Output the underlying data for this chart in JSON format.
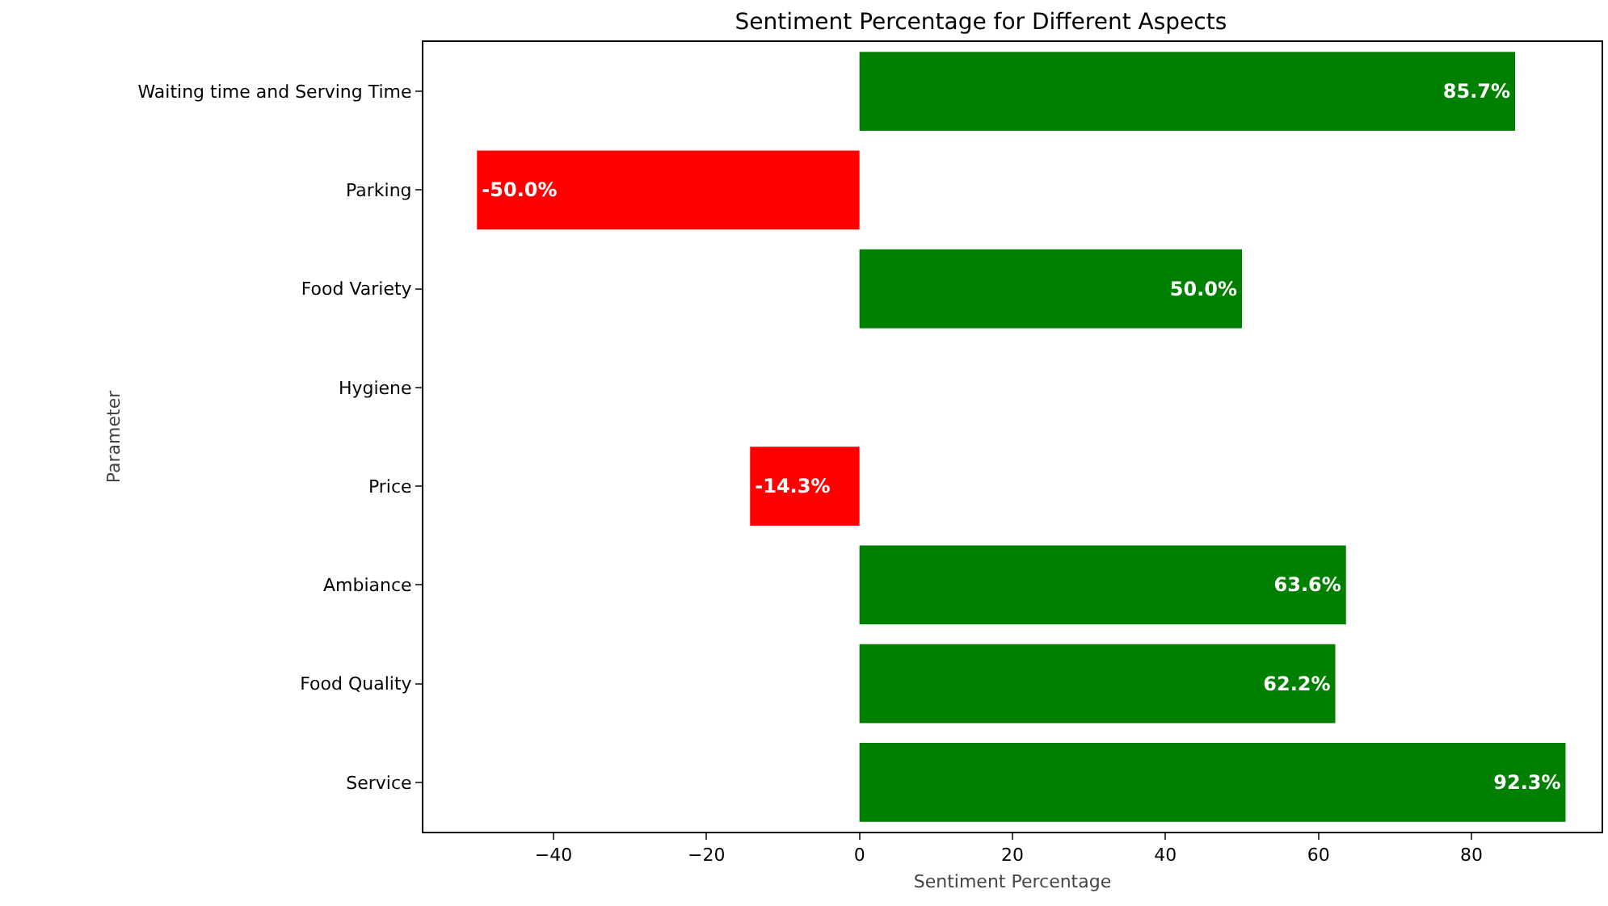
{
  "chart_data": {
    "type": "bar",
    "orientation": "horizontal",
    "title": "Sentiment Percentage for Different Aspects",
    "xlabel": "Sentiment Percentage",
    "ylabel": "Parameter",
    "categories": [
      "Waiting time and Serving Time",
      "Parking",
      "Food Variety",
      "Hygiene",
      "Price",
      "Ambiance",
      "Food Quality",
      "Service"
    ],
    "values": [
      85.7,
      -50.0,
      50.0,
      0,
      -14.3,
      63.6,
      62.2,
      92.3
    ],
    "value_labels": [
      "85.7%",
      "-50.0%",
      "50.0%",
      null,
      "-14.3%",
      "63.6%",
      "62.2%",
      "92.3%"
    ],
    "colors": [
      "#008000",
      "#ff0000",
      "#008000",
      "#008000",
      "#ff0000",
      "#008000",
      "#008000",
      "#008000"
    ],
    "xlim": [
      -57,
      97
    ],
    "xticks": [
      {
        "value": -40,
        "label": "−40"
      },
      {
        "value": -20,
        "label": "−20"
      },
      0,
      20,
      40,
      60,
      80
    ]
  }
}
